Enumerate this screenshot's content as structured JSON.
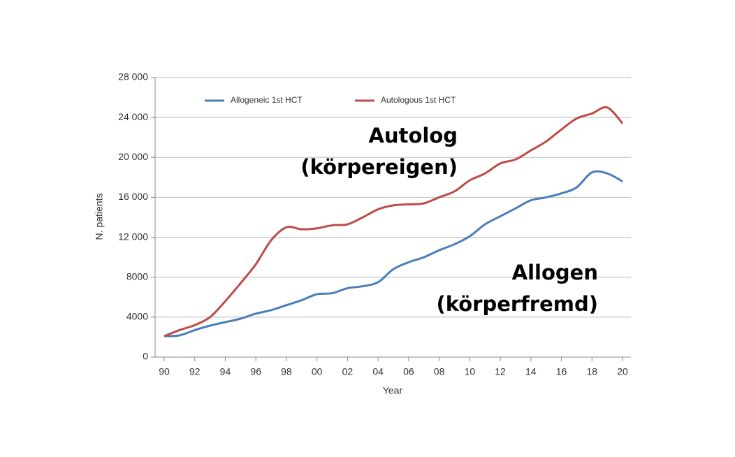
{
  "chart_data": {
    "type": "line",
    "x_label": "Year",
    "y_label": "N. patients",
    "categories": [
      "90",
      null,
      "92",
      null,
      "94",
      null,
      "96",
      null,
      "98",
      null,
      "00",
      null,
      "02",
      null,
      "04",
      null,
      "06",
      null,
      "08",
      null,
      "10",
      null,
      "12",
      null,
      "14",
      null,
      "16",
      null,
      "18",
      null,
      "20"
    ],
    "series": [
      {
        "name": "Allogeneic 1st HCT",
        "color": "#4a7ebb",
        "values": [
          2100,
          2170,
          2700,
          3150,
          3500,
          3850,
          4350,
          4700,
          5200,
          5700,
          6300,
          6400,
          6900,
          7100,
          7500,
          8800,
          9500,
          10000,
          10700,
          11300,
          12100,
          13300,
          14100,
          14900,
          15700,
          16000,
          16400,
          17000,
          18500,
          18400,
          17600
        ]
      },
      {
        "name": "Autologous 1st HCT",
        "color": "#be4b48",
        "values": [
          2100,
          2700,
          3200,
          4000,
          5600,
          7400,
          9300,
          11700,
          13000,
          12800,
          12900,
          13200,
          13300,
          14000,
          14800,
          15200,
          15300,
          15400,
          16000,
          16600,
          17700,
          18400,
          19400,
          19800,
          20700,
          21600,
          22800,
          23900,
          24400,
          25000,
          23400
        ]
      }
    ],
    "ylim": [
      0,
      28000
    ],
    "yticks": [
      0,
      4000,
      8000,
      {
        "value": 12000,
        "label": "12 000"
      },
      {
        "value": 16000,
        "label": "16 000"
      },
      {
        "value": 20000,
        "label": "20 000"
      },
      {
        "value": 24000,
        "label": "24 000"
      },
      {
        "value": 28000,
        "label": "28 000"
      }
    ],
    "grid": true,
    "legend": "top",
    "annotations": [
      {
        "lines": [
          "Autolog",
          "(körpereigen)"
        ]
      },
      {
        "lines": [
          "Allogen",
          "(körperfremd)"
        ]
      }
    ]
  }
}
